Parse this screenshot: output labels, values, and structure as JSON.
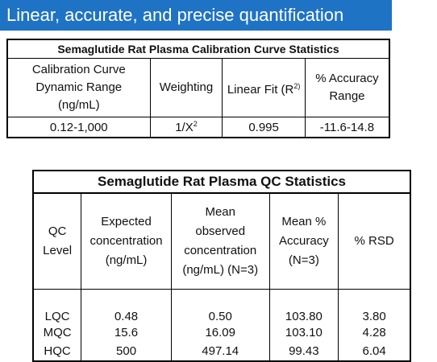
{
  "banner": {
    "title": "Linear, accurate, and precise quantification"
  },
  "calibration_table": {
    "title": "Semaglutide Rat Plasma Calibration Curve Statistics",
    "headers": {
      "range_l1": "Calibration Curve",
      "range_l2": "Dynamic Range",
      "range_l3": "(ng/mL)",
      "weighting": "Weighting",
      "fit_main": "Linear Fit (R",
      "fit_sup": "2)",
      "acc_l1": "% Accuracy",
      "acc_l2": "Range"
    },
    "row": {
      "range": "0.12-1,000",
      "weighting_base": "1/X",
      "weighting_sup": "2",
      "fit": "0.995",
      "accuracy": "-11.6-14.8"
    }
  },
  "qc_table": {
    "title": "Semaglutide Rat Plasma QC Statistics",
    "headers": {
      "level_l1": "QC",
      "level_l2": "Level",
      "exp_l1": "Expected",
      "exp_l2": "concentration",
      "exp_l3": "(ng/mL)",
      "obs_l1": "Mean",
      "obs_l2": "observed",
      "obs_l3": "concentration",
      "obs_l4": "(ng/mL) (N=3)",
      "acc_l1": "Mean %",
      "acc_l2": "Accuracy",
      "acc_l3": "(N=3)",
      "rsd": "% RSD"
    },
    "rows": [
      {
        "level": "LQC",
        "expected": "0.48",
        "observed": "0.50",
        "accuracy": "103.80",
        "rsd": "3.80"
      },
      {
        "level": "MQC",
        "expected": "15.6",
        "observed": "16.09",
        "accuracy": "103.10",
        "rsd": "4.28"
      },
      {
        "level": "HQC",
        "expected": "500",
        "observed": "497.14",
        "accuracy": "99.43",
        "rsd": "6.04"
      }
    ]
  }
}
